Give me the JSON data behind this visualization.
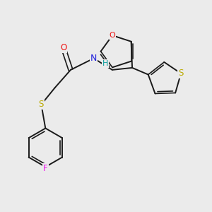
{
  "background_color": "#ebebeb",
  "bond_color": "#1a1a1a",
  "atom_colors": {
    "O": "#ee1111",
    "N": "#2222dd",
    "S": "#bbaa00",
    "F": "#ee11ee",
    "H": "#009999"
  },
  "figsize": [
    3.0,
    3.0
  ],
  "dpi": 100
}
